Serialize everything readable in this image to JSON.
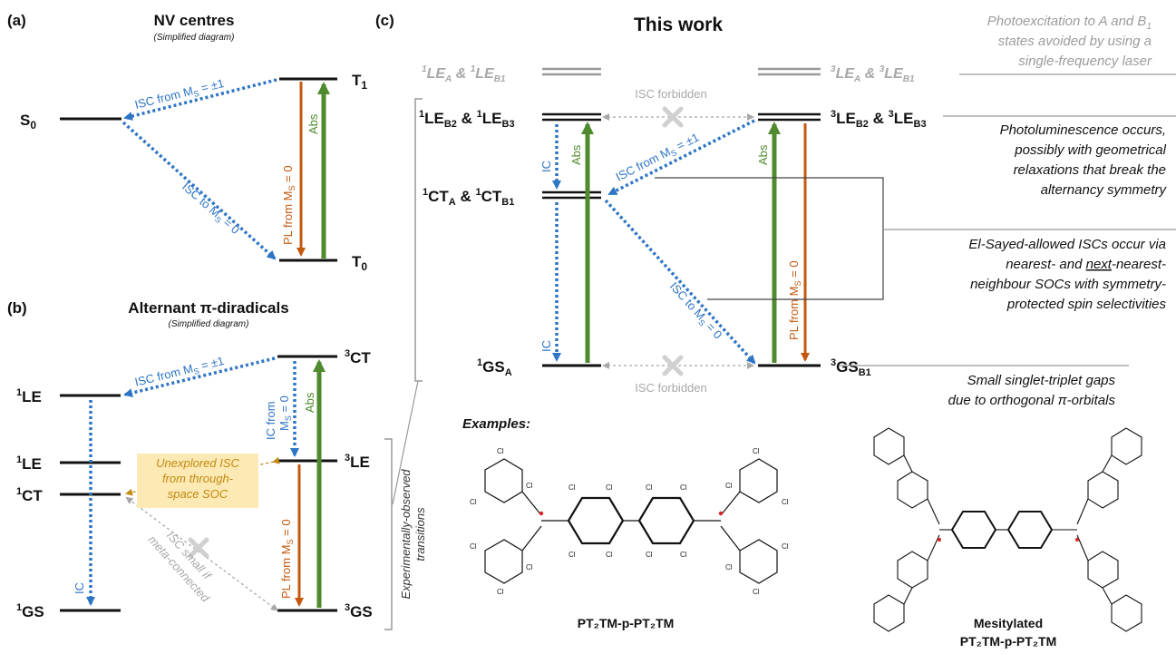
{
  "panels": {
    "a": "(a)",
    "b": "(b)",
    "c": "(c)"
  },
  "panel_a": {
    "title": "NV centres",
    "subtitle": "(Simplified diagram)",
    "states": {
      "s0": "S",
      "t1": "T",
      "t0": "T"
    },
    "state_subs": {
      "s0": "0",
      "t1": "1",
      "t0": "0"
    },
    "isc_from": "ISC from M",
    "isc_from_tail": " = ±1",
    "isc_to": "ISC to M",
    "isc_to_tail": " = 0",
    "pl": "PL from M",
    "pl_tail": " = 0",
    "abs": "Abs"
  },
  "panel_b": {
    "title": "Alternant π-diradicals",
    "subtitle": "(Simplified diagram)",
    "states": {
      "le_top": "LE",
      "le_mid": "LE",
      "ct": "CT",
      "gs": "GS",
      "ct3": "CT",
      "le3": "LE",
      "gs3": "GS"
    },
    "isc_from": "ISC from M",
    "isc_from_tail": " = ±1",
    "ic_from_line1": "IC from",
    "ic_from_line2": "M",
    "ic_from_tail": " = 0",
    "abs": "Abs",
    "pl": "PL from M",
    "pl_tail": " = 0",
    "ic": "IC",
    "unexplored_line1": "Unexplored ISC",
    "unexplored_line2": "from through-",
    "unexplored_line3": "space SOC",
    "isc_small_line1": "ISC small if",
    "isc_small_line2": "meta-connected",
    "exp_line1": "Experimentally-observed",
    "exp_line2": "transitions"
  },
  "panel_c": {
    "title": "This work",
    "le_singlet_gray": "LE",
    "le_triplet_gray": "LE",
    "le_singlet": "LE",
    "le_triplet": "LE",
    "ct_singlet": "CT",
    "gs_singlet": "GS",
    "gs_triplet": "GS",
    "amp": " & ",
    "isc_forbidden_top": "ISC forbidden",
    "isc_forbidden_bottom": "ISC forbidden",
    "isc_from": "ISC from M",
    "isc_from_tail": " = ±1",
    "isc_to": "ISC to M",
    "isc_to_tail": " = 0",
    "ic_top": "IC",
    "ic_bottom": "IC",
    "abs_left": "Abs",
    "abs_right": "Abs",
    "pl": "PL from M",
    "pl_tail": " = 0"
  },
  "notes": {
    "n1": [
      "Photoexcitation to A and B",
      "states avoided by using a",
      "single-frequency laser"
    ],
    "n2": [
      "Photoluminescence occurs,",
      "possibly with geometrical",
      "relaxations that break the",
      "alternancy symmetry"
    ],
    "n3_line1": "El-Sayed-allowed ISCs occur via",
    "n3_line2a": "nearest- and ",
    "n3_line2b": "next",
    "n3_line2c": "-nearest-",
    "n3_line3": "neighbour SOCs with symmetry-",
    "n3_line4": "protected spin selectivities",
    "n4": [
      "Small singlet-triplet gaps",
      "due to orthogonal π-orbitals"
    ]
  },
  "examples": {
    "heading": "Examples:",
    "mol1": "PT₂TM-p-PT₂TM",
    "mol2_line1": "Mesitylated",
    "mol2_line2": "PT₂TM-p-PT₂TM",
    "atom": "Cl"
  },
  "colors": {
    "blue": "#2e75c6",
    "orange": "#c4580f",
    "green": "#4f8a2e",
    "gray": "#a8a8a8",
    "gold": "#c08a12",
    "highlight": "#fde9b3",
    "radical": "#e02020"
  }
}
